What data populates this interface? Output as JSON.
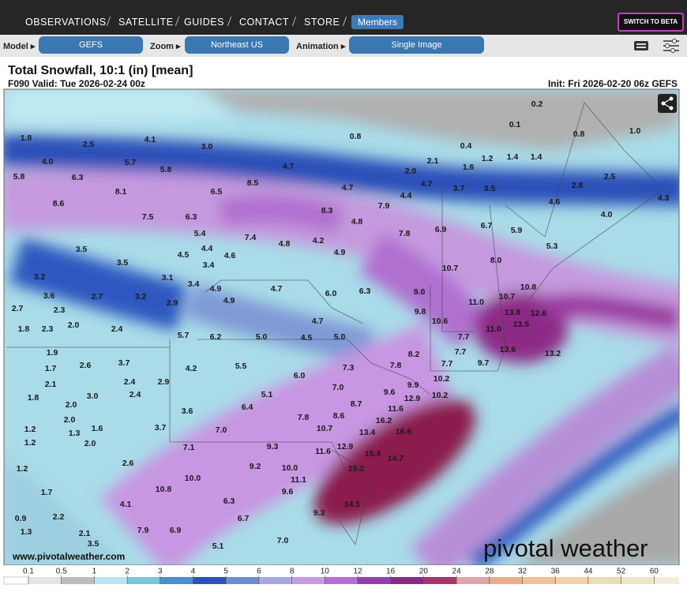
{
  "nav": {
    "items": [
      "OBSERVATIONS",
      "SATELLITE",
      "GUIDES",
      "CONTACT",
      "STORE"
    ],
    "members": "Members",
    "beta": "SWITCH TO BETA"
  },
  "toolbar": {
    "model_label": "Model ▸",
    "model": "GEFS",
    "zoom_label": "Zoom ▸",
    "zoom": "Northeast US",
    "animation_label": "Animation ▸",
    "animation": "Single Image"
  },
  "header": {
    "title": "Total Snowfall, 10:1 (in) [mean]",
    "valid": "F090 Valid: Tue 2026-02-24 00z",
    "init": "Init: Fri 2026-02-20 06z GEFS"
  },
  "map": {
    "labels": [
      "0.2",
      "0.1",
      "0.8",
      "1.0",
      "0.8",
      "0.4",
      "1.2",
      "1.4",
      "1.4",
      "1.8",
      "2.5",
      "4.1",
      "3.0",
      "4.0",
      "5.7",
      "5.8",
      "2.1",
      "1.6",
      "2.0",
      "5.8",
      "6.3",
      "4.7",
      "4.7",
      "3.7",
      "3.5",
      "2.8",
      "2.5",
      "8.1",
      "6.5",
      "8.5",
      "4.7",
      "4.4",
      "4.3",
      "8.6",
      "7.9",
      "8.3",
      "4.6",
      "4.0",
      "7.5",
      "6.3",
      "4.8",
      "6.9",
      "6.7",
      "5.9",
      "7.8",
      "5.4",
      "7.4",
      "4.8",
      "4.2",
      "4.9",
      "4.4",
      "4.5",
      "4.6",
      "3.5",
      "3.5",
      "3.4",
      "5.3",
      "8.0",
      "10.7",
      "3.2",
      "3.1",
      "3.4",
      "4.9",
      "4.7",
      "6.0",
      "6.3",
      "9.0",
      "10.8",
      "10.7",
      "11.0",
      "3.6",
      "2.7",
      "3.2",
      "2.9",
      "4.9",
      "2.7",
      "2.3",
      "9.8",
      "10.6",
      "13.5",
      "12.6",
      "13.8",
      "2.0",
      "2.4",
      "1.8",
      "2.3",
      "4.7",
      "11.0",
      "5.7",
      "6.2",
      "5.0",
      "4.5",
      "5.0",
      "7.7",
      "13.6",
      "7.7",
      "8.2",
      "13.2",
      "1.9",
      "3.7",
      "2.6",
      "1.7",
      "4.2",
      "5.5",
      "7.3",
      "7.8",
      "7.7",
      "9.7",
      "6.0",
      "2.4",
      "2.9",
      "2.1",
      "10.2",
      "9.6",
      "9.9",
      "7.0",
      "5.1",
      "10.2",
      "1.8",
      "3.0",
      "2.4",
      "8.7",
      "11.6",
      "12.9",
      "2.0",
      "6.4",
      "3.6",
      "7.8",
      "8.6",
      "16.2",
      "2.0",
      "1.2",
      "1.3",
      "1.6",
      "3.7",
      "7.0",
      "10.7",
      "13.4",
      "16.6",
      "1.2",
      "2.0",
      "7.1",
      "9.3",
      "12.9",
      "11.6",
      "15.4",
      "14.7",
      "2.6",
      "9.2",
      "10.0",
      "15.2",
      "1.2",
      "11.1",
      "10.0",
      "10.8",
      "9.6",
      "1.7",
      "4.1",
      "6.3",
      "14.1",
      "9.3",
      "0.9",
      "2.2",
      "6.7",
      "1.3",
      "7.9",
      "6.9",
      "2.1",
      "7.0",
      "3.5",
      "5.1"
    ],
    "url": "www.pivotalweather.com",
    "watermark": "pivotal weather"
  },
  "legend": {
    "ticks": [
      0.1,
      0.5,
      1,
      2,
      3,
      4,
      5,
      6,
      8,
      10,
      12,
      16,
      20,
      24,
      28,
      32,
      36,
      44,
      52,
      60
    ],
    "colors": [
      "#e4e4e4",
      "#bdbdbd",
      "#b8e6f0",
      "#7cc3dc",
      "#4a8fcf",
      "#2c52b8",
      "#6f8cd0",
      "#a9a6e2",
      "#c79ce0",
      "#b56fd2",
      "#9440b2",
      "#8a2a86",
      "#a8366e",
      "#e0a4a8",
      "#e8ad8a",
      "#f0c296",
      "#f2d2a6",
      "#ebdcb6",
      "#eee4c6",
      "#f4ecd8"
    ]
  }
}
